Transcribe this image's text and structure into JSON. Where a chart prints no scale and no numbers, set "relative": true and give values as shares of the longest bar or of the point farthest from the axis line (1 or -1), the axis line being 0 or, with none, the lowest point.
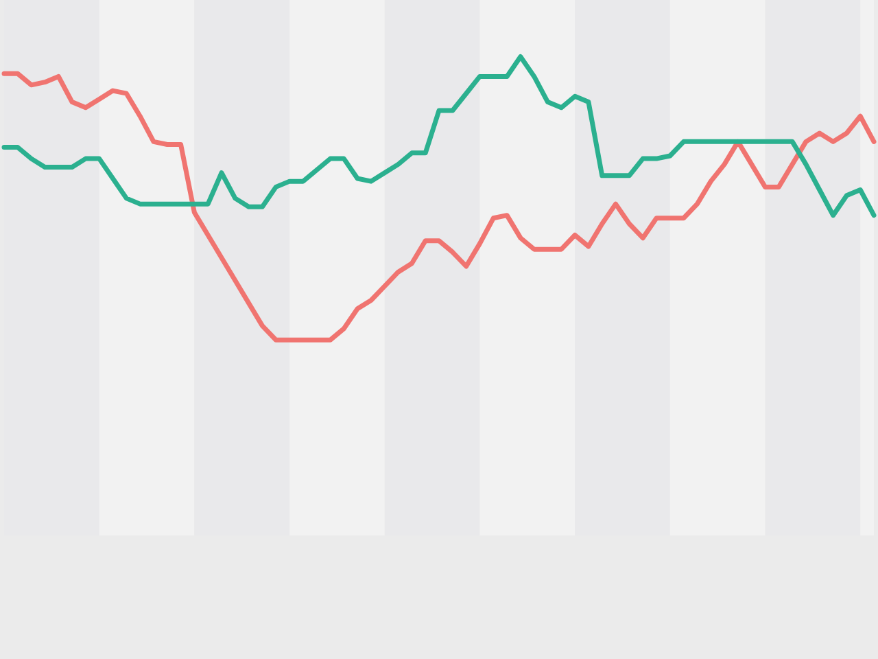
{
  "chart_data": {
    "type": "line",
    "relative": true,
    "categories": [
      null,
      null,
      null,
      null,
      null,
      null,
      null,
      null,
      null,
      null,
      null,
      null,
      null,
      null,
      null,
      null,
      null,
      null,
      null,
      null,
      null,
      null,
      null,
      null,
      null,
      null,
      null,
      null,
      null,
      null,
      null,
      null,
      null,
      null,
      null,
      null,
      null,
      null,
      null,
      null,
      null,
      null,
      null,
      null,
      null,
      null,
      null,
      null,
      null,
      null,
      null,
      null,
      null,
      null,
      null,
      null,
      null,
      null,
      null,
      null,
      null,
      null,
      null,
      null,
      null
    ],
    "series": [
      {
        "color": "#f07470",
        "values": [
          0.94,
          0.94,
          0.9,
          0.91,
          0.93,
          0.84,
          0.82,
          0.85,
          0.88,
          0.87,
          0.79,
          0.7,
          0.69,
          0.69,
          0.45,
          0.37,
          0.29,
          0.21,
          0.13,
          0.05,
          0,
          0,
          0,
          0,
          0,
          0.04,
          0.11,
          0.14,
          0.19,
          0.24,
          0.27,
          0.35,
          0.35,
          0.31,
          0.26,
          0.34,
          0.43,
          0.44,
          0.36,
          0.32,
          0.32,
          0.32,
          0.37,
          0.33,
          0.41,
          0.48,
          0.41,
          0.36,
          0.43,
          0.43,
          0.43,
          0.48,
          0.56,
          0.62,
          0.7,
          0.62,
          0.54,
          0.54,
          0.62,
          0.7,
          0.73,
          0.7,
          0.73,
          0.79,
          0.7
        ]
      },
      {
        "color": "#2bb08f",
        "values": [
          0.68,
          0.68,
          0.64,
          0.61,
          0.61,
          0.61,
          0.64,
          0.64,
          0.57,
          0.5,
          0.48,
          0.48,
          0.48,
          0.48,
          0.48,
          0.48,
          0.59,
          0.5,
          0.47,
          0.47,
          0.54,
          0.56,
          0.56,
          0.6,
          0.64,
          0.64,
          0.57,
          0.56,
          0.59,
          0.62,
          0.66,
          0.66,
          0.81,
          0.81,
          0.87,
          0.93,
          0.93,
          0.93,
          1,
          0.93,
          0.84,
          0.82,
          0.86,
          0.84,
          0.58,
          0.58,
          0.58,
          0.64,
          0.64,
          0.65,
          0.7,
          0.7,
          0.7,
          0.7,
          0.7,
          0.7,
          0.7,
          0.7,
          0.7,
          0.62,
          0.53,
          0.44,
          0.51,
          0.53,
          0.44
        ]
      }
    ],
    "line_style": "solid"
  }
}
